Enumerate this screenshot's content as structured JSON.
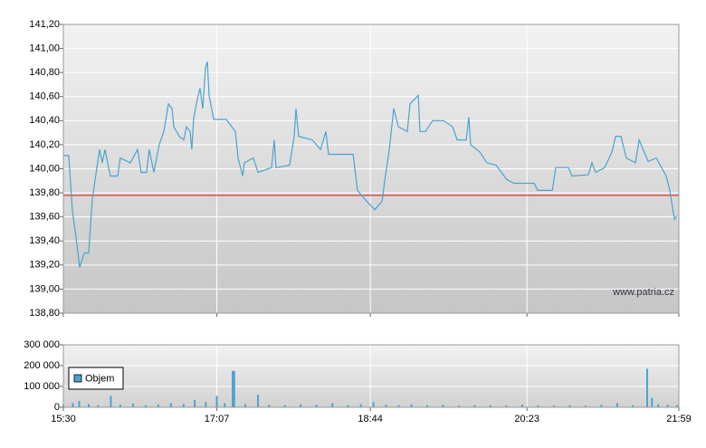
{
  "chart_data": [
    {
      "type": "line",
      "color": "#4aa3cf",
      "x": [
        930.0,
        933.4,
        935.7,
        938.0,
        940.3,
        943.2,
        946.0,
        948.3,
        952.9,
        954.6,
        956.3,
        959.7,
        964.3,
        966.0,
        972.3,
        976.9,
        979.2,
        982.6,
        984.3,
        987.2,
        990.6,
        993.5,
        996.4,
        998.7,
        999.8,
        1003.2,
        1006.1,
        1007.8,
        1010.1,
        1011.2,
        1012.4,
        1014.7,
        1016.4,
        1018.1,
        1019.8,
        1021.0,
        1022.1,
        1025.0,
        1033.0,
        1038.7,
        1040.4,
        1043.3,
        1044.4,
        1050.1,
        1053.0,
        1061.6,
        1063.3,
        1064.4,
        1073.0,
        1075.9,
        1077.0,
        1078.7,
        1087.3,
        1092.5,
        1095.9,
        1097.6,
        1102.8,
        1113.1,
        1115.9,
        1121.7,
        1126.8,
        1131.4,
        1133.1,
        1136.0,
        1138.8,
        1141.7,
        1147.4,
        1149.1,
        1154.3,
        1155.4,
        1158.8,
        1163.4,
        1170.3,
        1176.0,
        1178.9,
        1184.6,
        1186.3,
        1187.4,
        1193.2,
        1197.7,
        1203.5,
        1210.3,
        1214.9,
        1227.5,
        1229.8,
        1239.0,
        1241.2,
        1249.2,
        1251.5,
        1261.8,
        1264.1,
        1266.4,
        1272.1,
        1276.7,
        1279.0,
        1282.4,
        1285.8,
        1291.6,
        1293.9,
        1299.6,
        1304.7,
        1311.0,
        1313.3,
        1316.2,
        1317.9
      ],
      "values": [
        140.11,
        140.11,
        139.65,
        139.43,
        139.18,
        139.3,
        139.3,
        139.75,
        140.16,
        140.05,
        140.16,
        139.94,
        139.94,
        140.09,
        140.05,
        140.16,
        139.97,
        139.97,
        140.16,
        139.97,
        140.2,
        140.31,
        140.54,
        140.5,
        140.35,
        140.27,
        140.24,
        140.35,
        140.31,
        140.16,
        140.42,
        140.58,
        140.67,
        140.5,
        140.84,
        140.89,
        140.61,
        140.41,
        140.41,
        140.31,
        140.09,
        139.94,
        140.05,
        140.09,
        139.97,
        140.01,
        140.24,
        140.01,
        140.03,
        140.27,
        140.5,
        140.27,
        140.24,
        140.16,
        140.31,
        140.12,
        140.12,
        140.12,
        139.82,
        139.73,
        139.66,
        139.73,
        139.9,
        140.16,
        140.5,
        140.35,
        140.31,
        140.54,
        140.61,
        140.31,
        140.31,
        140.4,
        140.4,
        140.35,
        140.24,
        140.24,
        140.43,
        140.2,
        140.14,
        140.05,
        140.03,
        139.91,
        139.88,
        139.88,
        139.82,
        139.82,
        140.01,
        140.01,
        139.94,
        139.95,
        140.05,
        139.97,
        140.01,
        140.14,
        140.27,
        140.27,
        140.09,
        140.05,
        140.24,
        140.06,
        140.09,
        139.94,
        139.82,
        139.58,
        139.61
      ],
      "xlim": [
        930,
        1319
      ],
      "ylim": [
        138.8,
        141.2
      ],
      "yticks": [
        {
          "value": 138.8,
          "label": "138,80"
        },
        {
          "value": 139.0,
          "label": "139,00"
        },
        {
          "value": 139.2,
          "label": "139,20"
        },
        {
          "value": 139.4,
          "label": "139,40"
        },
        {
          "value": 139.6,
          "label": "139,60"
        },
        {
          "value": 139.8,
          "label": "139,80"
        },
        {
          "value": 140.0,
          "label": "140,00"
        },
        {
          "value": 140.2,
          "label": "140,20"
        },
        {
          "value": 140.4,
          "label": "140,40"
        },
        {
          "value": 140.6,
          "label": "140,60"
        },
        {
          "value": 140.8,
          "label": "140,80"
        },
        {
          "value": 141.0,
          "label": "141,00"
        },
        {
          "value": 141.2,
          "label": "141,20"
        }
      ],
      "reference_line": 139.78,
      "reference_color": "#d9534f",
      "annotation": "www.patria.cz",
      "grid": true
    },
    {
      "type": "bar",
      "x": [
        930,
        936,
        940,
        946,
        952,
        960,
        966,
        974,
        982,
        990,
        998,
        1006,
        1013,
        1020,
        1027,
        1032,
        1037,
        1038,
        1045,
        1053,
        1060,
        1070,
        1080,
        1090,
        1100,
        1110,
        1118,
        1126,
        1134,
        1142,
        1150,
        1160,
        1170,
        1180,
        1190,
        1200,
        1210,
        1220,
        1230,
        1240,
        1250,
        1260,
        1270,
        1280,
        1290,
        1299,
        1302,
        1306,
        1312,
        1318
      ],
      "series": [
        {
          "name": "Objem",
          "color": "#4aa3cf",
          "values": [
            12000,
            20000,
            30000,
            15000,
            10000,
            55000,
            12000,
            18000,
            10000,
            14000,
            20000,
            15000,
            35000,
            25000,
            55000,
            20000,
            175000,
            175000,
            15000,
            60000,
            12000,
            10000,
            14000,
            12000,
            20000,
            10000,
            15000,
            25000,
            12000,
            10000,
            14000,
            10000,
            12000,
            8000,
            10000,
            9000,
            8000,
            12000,
            9000,
            8000,
            10000,
            8000,
            12000,
            20000,
            10000,
            185000,
            45000,
            15000,
            12000,
            10000
          ]
        }
      ],
      "xlim": [
        930,
        1319
      ],
      "xticks": [
        {
          "value": 930,
          "label": "15:30"
        },
        {
          "value": 1027,
          "label": "17:07"
        },
        {
          "value": 1124,
          "label": "18:44"
        },
        {
          "value": 1223,
          "label": "20:23"
        },
        {
          "value": 1319,
          "label": "21:59"
        }
      ],
      "ylim": [
        0,
        300000
      ],
      "yticks": [
        {
          "value": 0,
          "label": "0"
        },
        {
          "value": 100000,
          "label": "100 000"
        },
        {
          "value": 200000,
          "label": "200 000"
        },
        {
          "value": 300000,
          "label": "300 000"
        }
      ],
      "grid": true
    }
  ]
}
